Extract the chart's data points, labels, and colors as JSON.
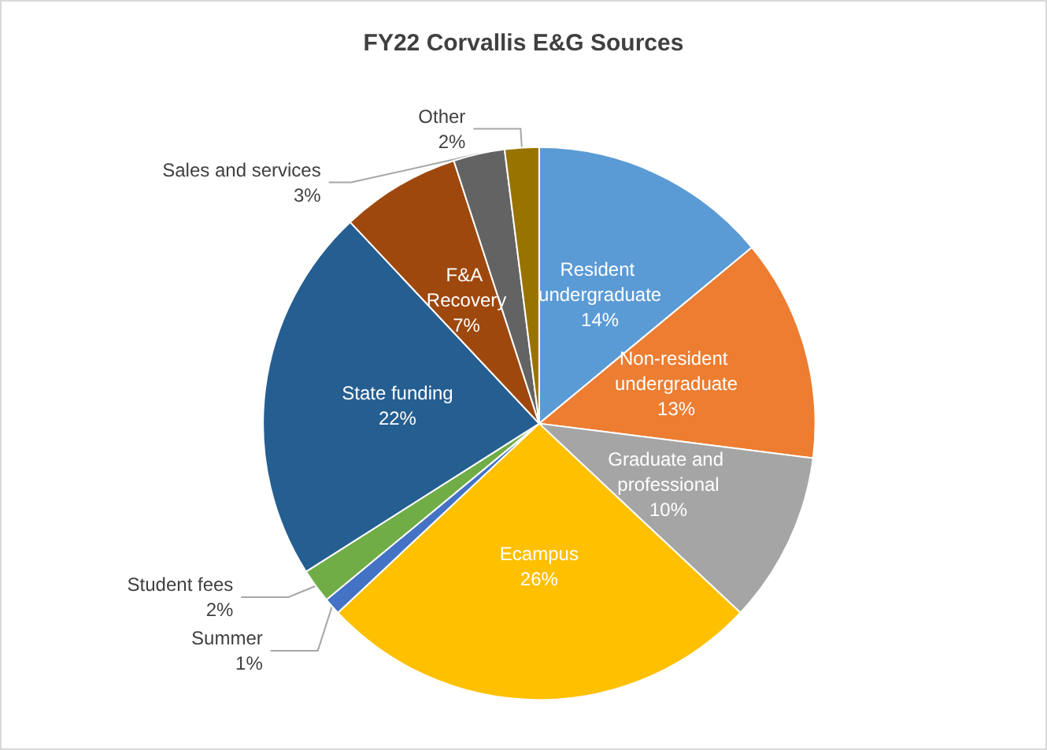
{
  "chart_data": {
    "type": "pie",
    "title": "FY22 Corvallis E&G Sources",
    "categories": [
      "Resident undergraduate",
      "Non-resident undergraduate",
      "Graduate and professional",
      "Ecampus",
      "Summer",
      "Student fees",
      "State funding",
      "F&A Recovery",
      "Sales and services",
      "Other"
    ],
    "values": [
      14,
      13,
      10,
      26,
      1,
      2,
      22,
      7,
      3,
      2
    ],
    "colors": [
      "#5b9bd5",
      "#ed7d31",
      "#a5a5a5",
      "#ffc000",
      "#4472c4",
      "#70ad47",
      "#255e91",
      "#9e480e",
      "#636363",
      "#997300"
    ],
    "value_labels": [
      "14%",
      "13%",
      "10%",
      "26%",
      "1%",
      "2%",
      "22%",
      "7%",
      "3%",
      "2%"
    ],
    "legend": false
  }
}
